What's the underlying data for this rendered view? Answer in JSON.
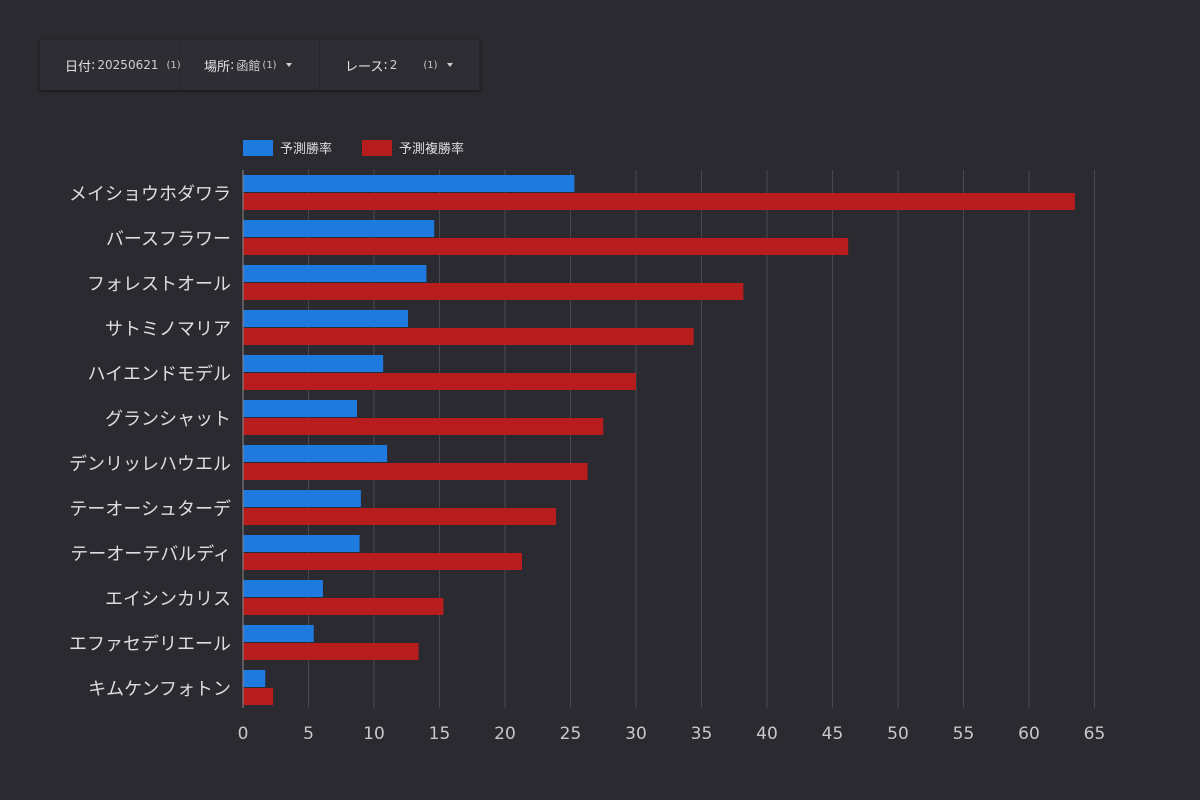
{
  "filters": [
    {
      "label": "日付",
      "value": "20250621",
      "count": "(1)"
    },
    {
      "label": "場所",
      "value": "函館",
      "count": "(1)"
    },
    {
      "label": "レース",
      "value": "2",
      "count": "(1)"
    }
  ],
  "colors": {
    "win": "#1f7ae0",
    "place": "#b81d1d",
    "background": "#2b2a30"
  },
  "chart_data": {
    "type": "bar",
    "orientation": "horizontal",
    "categories": [
      "メイショウホダワラ",
      "バースフラワー",
      "フォレストオール",
      "サトミノマリア",
      "ハイエンドモデル",
      "グランシャット",
      "デンリッレハウエル",
      "テーオーシュターデ",
      "テーオーテバルディ",
      "エイシンカリス",
      "エファセデリエール",
      "キムケンフォトン"
    ],
    "series": [
      {
        "name": "予測勝率",
        "color": "#1f7ae0",
        "values": [
          25.3,
          14.6,
          14.0,
          12.6,
          10.7,
          8.7,
          11.0,
          9.0,
          8.9,
          6.1,
          5.4,
          1.7
        ]
      },
      {
        "name": "予測複勝率",
        "color": "#b81d1d",
        "values": [
          63.5,
          46.2,
          38.2,
          34.4,
          30.0,
          27.5,
          26.3,
          23.9,
          21.3,
          15.3,
          13.4,
          2.3
        ]
      }
    ],
    "xlim": [
      0,
      65
    ],
    "xticks": [
      0,
      5,
      10,
      15,
      20,
      25,
      30,
      35,
      40,
      45,
      50,
      55,
      60,
      65
    ],
    "grid": true,
    "legend": "top-left"
  }
}
